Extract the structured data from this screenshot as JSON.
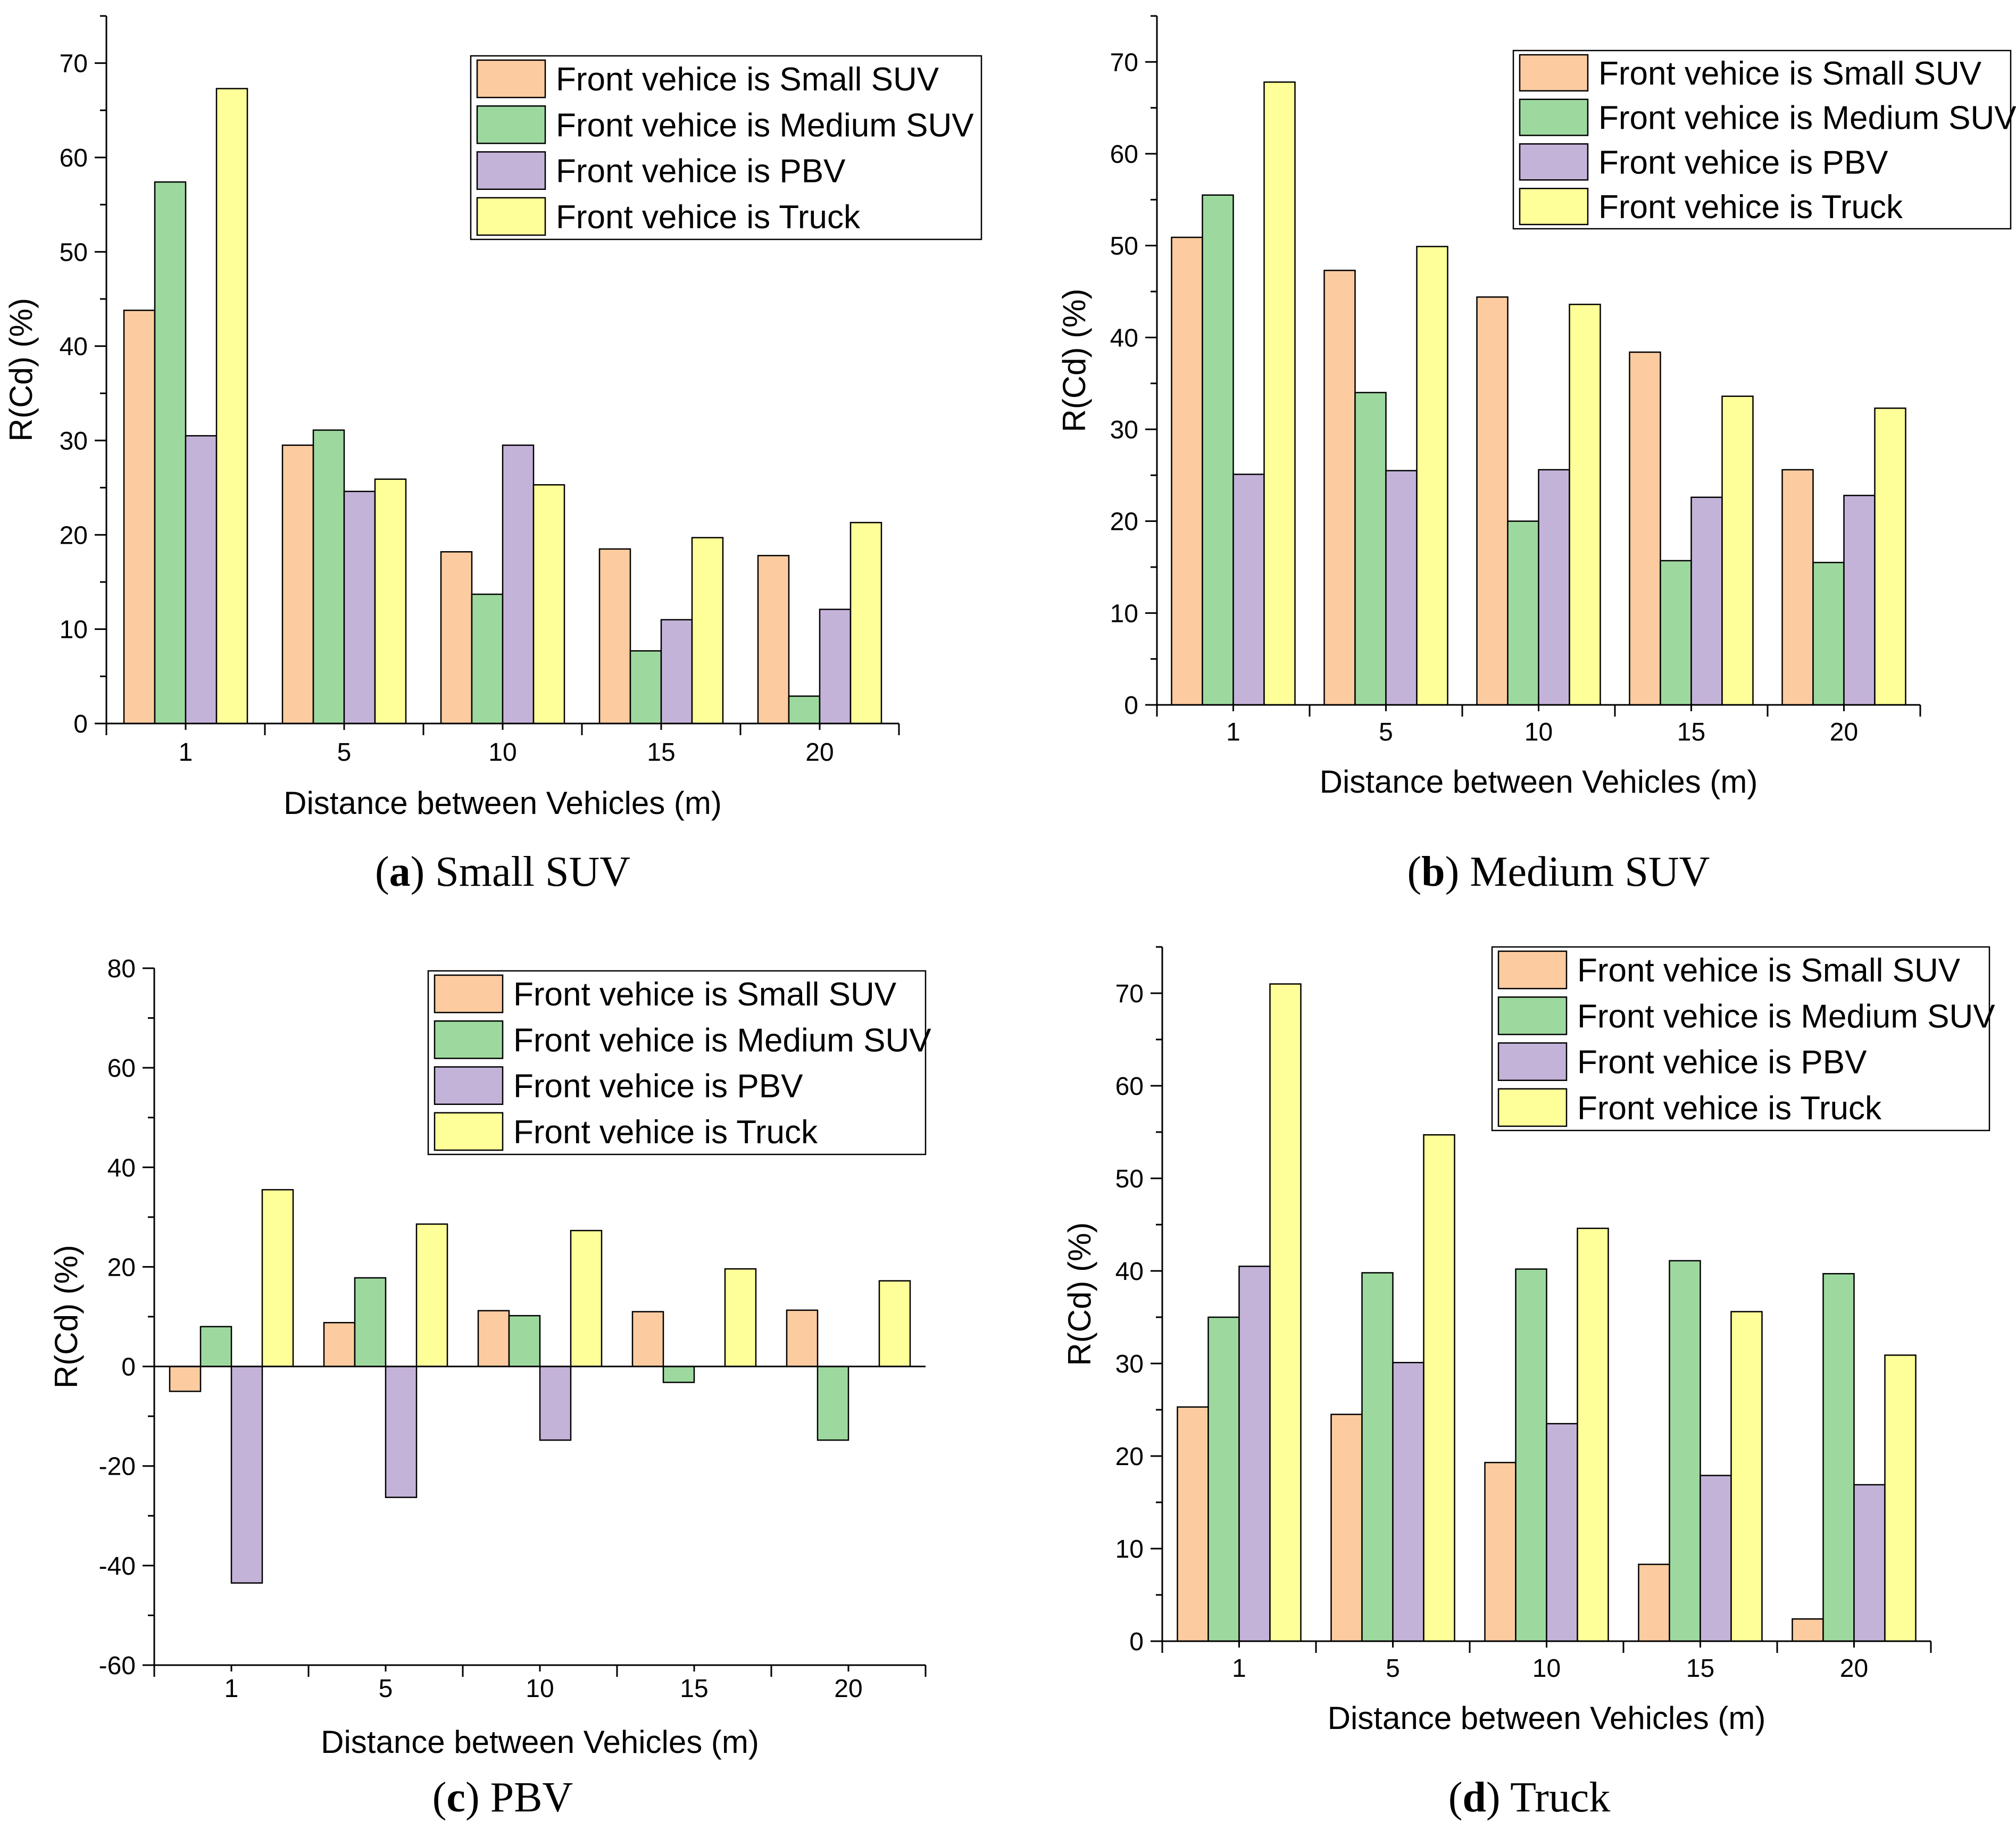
{
  "colors": {
    "small_suv": "#FCCB9F",
    "medium_suv": "#9DD99F",
    "pbv": "#C4B3D9",
    "truck": "#FFFF99"
  },
  "legend_labels": [
    "Front vehice is Small SUV",
    "Front vehice is Medium SUV",
    "Front vehice is PBV",
    "Front vehice is Truck"
  ],
  "chart_data": [
    {
      "type": "bar",
      "panel": "a",
      "caption_letter": "a",
      "caption_text": "Small SUV",
      "title": "",
      "xlabel": "Distance between Vehicles (m)",
      "ylabel": "R(Cd) (%)",
      "ylim": [
        0,
        75
      ],
      "yticks": [
        0,
        10,
        20,
        30,
        40,
        50,
        60,
        70
      ],
      "categories": [
        "1",
        "5",
        "10",
        "15",
        "20"
      ],
      "legend_position": "top-right",
      "series": [
        {
          "name": "Front vehice is Small SUV",
          "values": [
            43.8,
            29.5,
            18.2,
            18.5,
            17.8
          ]
        },
        {
          "name": "Front vehice is Medium SUV",
          "values": [
            57.4,
            31.1,
            13.7,
            7.7,
            2.9
          ]
        },
        {
          "name": "Front vehice is PBV",
          "values": [
            30.5,
            24.6,
            29.5,
            11.0,
            12.1
          ]
        },
        {
          "name": "Front vehice is Truck",
          "values": [
            67.3,
            25.9,
            25.3,
            19.7,
            21.3
          ]
        }
      ]
    },
    {
      "type": "bar",
      "panel": "b",
      "caption_letter": "b",
      "caption_text": "Medium SUV",
      "title": "",
      "xlabel": "Distance between Vehicles (m)",
      "ylabel": "R(Cd) (%)",
      "ylim": [
        0,
        75
      ],
      "yticks": [
        0,
        10,
        20,
        30,
        40,
        50,
        60,
        70
      ],
      "categories": [
        "1",
        "5",
        "10",
        "15",
        "20"
      ],
      "legend_position": "top-right",
      "series": [
        {
          "name": "Front vehice is Small SUV",
          "values": [
            50.9,
            47.3,
            44.4,
            38.4,
            25.6
          ]
        },
        {
          "name": "Front vehice is Medium SUV",
          "values": [
            55.5,
            34.0,
            20.0,
            15.7,
            15.5
          ]
        },
        {
          "name": "Front vehice is PBV",
          "values": [
            25.1,
            25.5,
            25.6,
            22.6,
            22.8
          ]
        },
        {
          "name": "Front vehice is Truck",
          "values": [
            67.8,
            49.9,
            43.6,
            33.6,
            32.3
          ]
        }
      ]
    },
    {
      "type": "bar",
      "panel": "c",
      "caption_letter": "c",
      "caption_text": "PBV",
      "title": "",
      "xlabel": "Distance between Vehicles (m)",
      "ylabel": "R(Cd) (%)",
      "ylim": [
        -60,
        80
      ],
      "yticks": [
        -60,
        -40,
        -20,
        0,
        20,
        40,
        60,
        80
      ],
      "categories": [
        "1",
        "5",
        "10",
        "15",
        "20"
      ],
      "legend_position": "top-right",
      "series": [
        {
          "name": "Front vehice is Small SUV",
          "values": [
            -5.0,
            8.8,
            11.2,
            11.0,
            11.3
          ]
        },
        {
          "name": "Front vehice is Medium SUV",
          "values": [
            8.0,
            17.8,
            10.2,
            -3.2,
            -14.8
          ]
        },
        {
          "name": "Front vehice is PBV",
          "values": [
            -43.5,
            -26.3,
            -14.8,
            0,
            0
          ]
        },
        {
          "name": "Front vehice is Truck",
          "values": [
            35.5,
            28.6,
            27.3,
            19.6,
            17.2
          ]
        }
      ]
    },
    {
      "type": "bar",
      "panel": "d",
      "caption_letter": "d",
      "caption_text": "Truck",
      "title": "",
      "xlabel": "Distance between Vehicles (m)",
      "ylabel": "R(Cd) (%)",
      "ylim": [
        0,
        75
      ],
      "yticks": [
        0,
        10,
        20,
        30,
        40,
        50,
        60,
        70
      ],
      "categories": [
        "1",
        "5",
        "10",
        "15",
        "20"
      ],
      "legend_position": "top-right",
      "series": [
        {
          "name": "Front vehice is Small SUV",
          "values": [
            25.3,
            24.5,
            19.3,
            8.3,
            2.4
          ]
        },
        {
          "name": "Front vehice is Medium SUV",
          "values": [
            35.0,
            39.8,
            40.2,
            41.1,
            39.7
          ]
        },
        {
          "name": "Front vehice is PBV",
          "values": [
            40.5,
            30.1,
            23.5,
            17.9,
            16.9
          ]
        },
        {
          "name": "Front vehice is Truck",
          "values": [
            71.0,
            54.7,
            44.6,
            35.6,
            30.9
          ]
        }
      ]
    }
  ]
}
